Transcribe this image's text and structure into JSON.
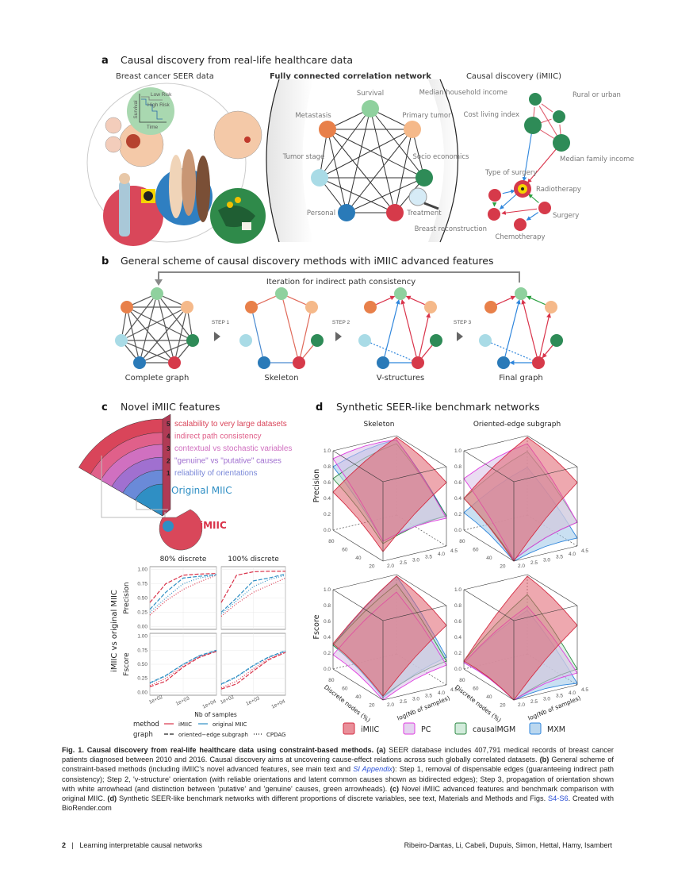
{
  "panel_a": {
    "letter": "a",
    "title": "Causal discovery from real-life healthcare data",
    "sub1": "Breast cancer SEER data",
    "sub2": "Fully connected correlation network",
    "sub3": "Causal discovery (iMIIC)",
    "km_plot": {
      "ylabel": "Survival",
      "xlabel": "Time",
      "low": "Low Risk",
      "high": "High Risk"
    },
    "network_nodes": [
      "Survival",
      "Metastasis",
      "Primary tumor",
      "Tumor stage",
      "Socio economics",
      "Personal",
      "Treatment"
    ],
    "causal_nodes": {
      "household": "Median household income",
      "rural": "Rural or urban",
      "cost": "Cost living index",
      "family": "Median family income",
      "type_surgery": "Type of surgery",
      "radio": "Radiotherapy",
      "surgery": "Surgery",
      "breast": "Breast reconstruction",
      "chemo": "Chemotherapy"
    }
  },
  "panel_b": {
    "letter": "b",
    "title": "General scheme of causal discovery methods with iMIIC advanced features",
    "iteration": "Iteration for indirect path consistency",
    "steps": [
      "STEP 1",
      "STEP 2",
      "STEP 3"
    ],
    "graphs": [
      "Complete graph",
      "Skeleton",
      "V-structures",
      "Final graph"
    ]
  },
  "panel_c": {
    "letter": "c",
    "title": "Novel iMIIC features",
    "features": [
      {
        "num": "5",
        "text": "scalability to very large datasets",
        "color": "#d9455a"
      },
      {
        "num": "4",
        "text": "indirect path consistency",
        "color": "#e0608a"
      },
      {
        "num": "3",
        "text": "contextual vs stochastic variables",
        "color": "#d070c0"
      },
      {
        "num": "2",
        "text": "\"genuine\" vs \"putative\" causes",
        "color": "#a070d0"
      },
      {
        "num": "1",
        "text": "reliability of orientations",
        "color": "#7a88d8"
      }
    ],
    "original": "Original MIIC",
    "imiic": "iMIIC",
    "chart_data": {
      "type": "line",
      "facets": [
        "80% discrete",
        "100% discrete"
      ],
      "rows": [
        "Precision",
        "Fscore"
      ],
      "ylabel": "iMIIC vs original MIIC",
      "xlabel": "Nb of samples",
      "x": [
        100,
        300,
        1000,
        3000,
        10000
      ],
      "xticks": [
        "1e+02",
        "1e+03",
        "1e+04"
      ],
      "yticks": [
        "0.00",
        "0.25",
        "0.50",
        "0.75",
        "1.00"
      ],
      "ylim": [
        0,
        1
      ],
      "xscale": "log",
      "series": {
        "Precision|80% discrete": {
          "iMIIC|oriented": [
            0.42,
            0.75,
            0.9,
            0.92,
            0.93
          ],
          "iMIIC|CPDAG": [
            0.2,
            0.45,
            0.65,
            0.78,
            0.9
          ],
          "original MIIC|oriented": [
            0.3,
            0.6,
            0.85,
            0.88,
            0.91
          ],
          "original MIIC|CPDAG": [
            0.25,
            0.5,
            0.75,
            0.85,
            0.9
          ]
        },
        "Precision|100% discrete": {
          "iMIIC|oriented": [
            0.42,
            0.9,
            0.96,
            0.97,
            0.97
          ],
          "iMIIC|CPDAG": [
            0.18,
            0.4,
            0.6,
            0.72,
            0.85
          ],
          "original MIIC|oriented": [
            0.25,
            0.5,
            0.8,
            0.85,
            0.92
          ],
          "original MIIC|CPDAG": [
            0.22,
            0.45,
            0.7,
            0.82,
            0.9
          ]
        },
        "Fscore|80% discrete": {
          "iMIIC|oriented": [
            0.1,
            0.2,
            0.45,
            0.62,
            0.73
          ],
          "iMIIC|CPDAG": [
            0.12,
            0.25,
            0.47,
            0.63,
            0.74
          ],
          "original MIIC|oriented": [
            0.17,
            0.3,
            0.5,
            0.65,
            0.75
          ],
          "original MIIC|CPDAG": [
            0.16,
            0.29,
            0.5,
            0.64,
            0.74
          ]
        },
        "Fscore|100% discrete": {
          "iMIIC|oriented": [
            0.06,
            0.15,
            0.38,
            0.58,
            0.71
          ],
          "iMIIC|CPDAG": [
            0.08,
            0.2,
            0.42,
            0.6,
            0.72
          ],
          "original MIIC|oriented": [
            0.15,
            0.28,
            0.48,
            0.63,
            0.74
          ],
          "original MIIC|CPDAG": [
            0.14,
            0.27,
            0.47,
            0.62,
            0.73
          ]
        }
      },
      "legend": {
        "method_title": "method",
        "methods": [
          "iMIIC",
          "original MIIC"
        ],
        "graph_title": "graph",
        "graphs": [
          "oriented−edge subgraph",
          "CPDAG"
        ]
      },
      "colors": {
        "iMIIC": "#d9334a",
        "original MIIC": "#2f8fc4"
      }
    }
  },
  "panel_d": {
    "letter": "d",
    "title": "Synthetic SEER-like benchmark networks",
    "chart_data": {
      "type": "surface3d",
      "columns": [
        "Skeleton",
        "Oriented-edge subgraph"
      ],
      "rows": [
        "Precision",
        "Fscore"
      ],
      "xlabel": "Discrete nodes (%)",
      "ylabel": "log(Nb of samples)",
      "zticks": [
        "0.0",
        "0.2",
        "0.4",
        "0.6",
        "0.8",
        "1.0"
      ],
      "xticks": [
        "80",
        "60",
        "40",
        "20"
      ],
      "yticks": [
        "2.0",
        "2.5",
        "3.0",
        "3.5",
        "4.0",
        "4.5"
      ],
      "corner_order": [
        "80%,2.0",
        "20%,2.0",
        "20%,4.5",
        "80%,4.5"
      ],
      "methods": [
        "iMIIC",
        "PC",
        "causalMGM",
        "MXM"
      ],
      "colors": {
        "iMIIC": {
          "fill": "#e0606e",
          "stroke": "#d42f45"
        },
        "PC": {
          "fill": "#d8c0e8",
          "stroke": "#e03ce0"
        },
        "causalMGM": {
          "fill": "#bfe3cc",
          "stroke": "#2f8a45"
        },
        "MXM": {
          "fill": "#9cc6e8",
          "stroke": "#2f86dc"
        }
      },
      "surfaces": {
        "Precision|Skeleton": {
          "iMIIC": [
            0.48,
            0.12,
            0.8,
            0.98
          ],
          "PC": [
            0.9,
            0.25,
            0.35,
            0.95
          ],
          "causalMGM": [
            0.65,
            0.22,
            0.38,
            0.9
          ],
          "MXM": [
            0.8,
            0.25,
            0.38,
            0.95
          ]
        },
        "Precision|Oriented-edge subgraph": {
          "iMIIC": [
            0.4,
            0.0,
            0.8,
            0.98
          ],
          "PC": [
            0.65,
            0.02,
            0.3,
            0.9
          ],
          "causalMGM": [
            0.4,
            0.02,
            0.3,
            0.8
          ],
          "MXM": [
            0.22,
            0.0,
            0.1,
            0.6
          ]
        },
        "Fscore|Skeleton": {
          "iMIIC": [
            0.32,
            0.05,
            0.75,
            0.98
          ],
          "PC": [
            0.18,
            0.0,
            0.25,
            0.78
          ],
          "causalMGM": [
            0.3,
            0.05,
            0.3,
            0.88
          ],
          "MXM": [
            0.3,
            0.03,
            0.35,
            0.98
          ]
        },
        "Fscore|Oriented-edge subgraph": {
          "iMIIC": [
            0.1,
            0.0,
            0.75,
            0.98
          ],
          "PC": [
            0.08,
            0.0,
            0.15,
            0.6
          ],
          "causalMGM": [
            0.1,
            0.0,
            0.2,
            0.75
          ],
          "MXM": [
            0.08,
            0.0,
            0.02,
            0.55
          ]
        }
      }
    }
  },
  "caption": {
    "s1": "Fig. 1.  Causal discovery from real-life healthcare data using constraint-based methods.",
    "s2": "(a)",
    "s3": " SEER database includes 407,791 medical records of breast cancer patients diagnosed between 2010 and 2016. Causal discovery aims at uncovering cause-effect relations across such globally correlated datasets. ",
    "s4": "(b)",
    "s5": " General scheme of constraint-based methods (including iMIIC's novel advanced features, see main text and ",
    "s6": "SI Appendix",
    "s7": "): Step 1, removal of dispensable edges (guaranteeing indirect path consistency); Step 2, 'v-structure' orientation (with reliable orientations and latent common causes shown as bidirected edges); Step 3, propagation of orientation shown with white arrowhead (and distinction between 'putative' and 'genuine' causes, green arrowheads). ",
    "s8": "(c)",
    "s9": " Novel iMIIC advanced features and benchmark comparison with original MIIC. ",
    "s10": "(d)",
    "s11": " Synthetic SEER-like benchmark networks with different proportions of discrete variables, see text, Materials and Methods and Figs. ",
    "s12": "S4-S6",
    "s13": ". Created with BioRender.com"
  },
  "footer": {
    "page": "2",
    "sep": "|",
    "running_title": "Learning interpretable causal networks",
    "authors": "Ribeiro-Dantas, Li, Cabeli, Dupuis, Simon, Hettal, Hamy, Isambert"
  }
}
